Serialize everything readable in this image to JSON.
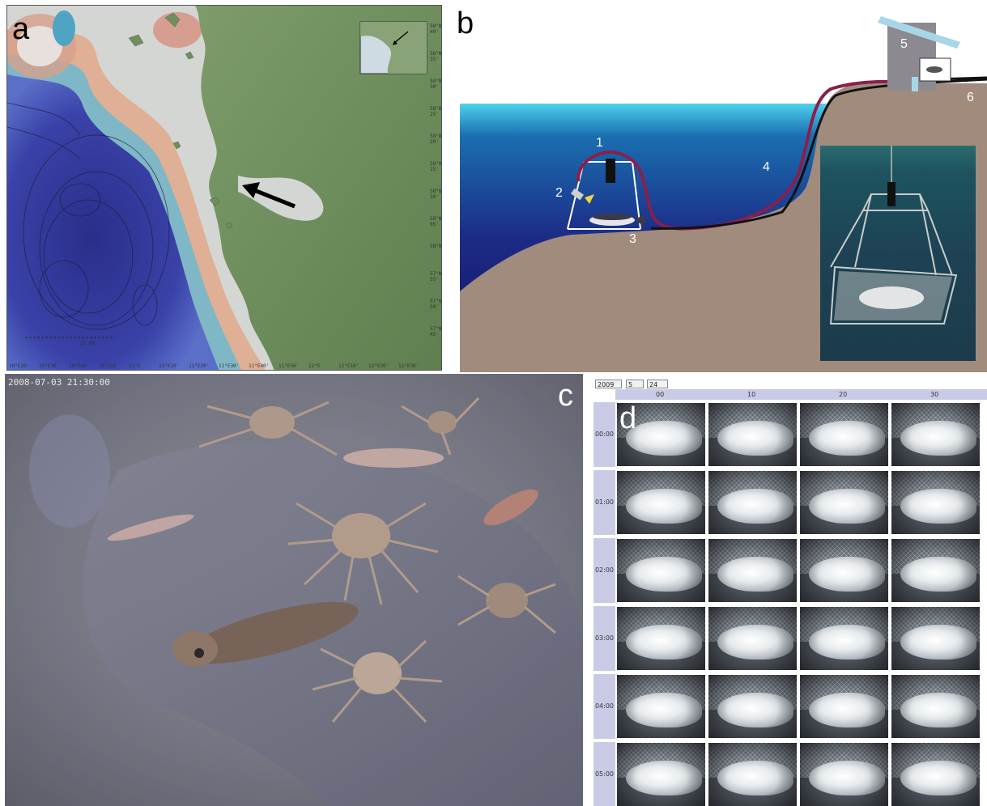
{
  "panel_a": {
    "letter": "a",
    "scale_label": "20 NM",
    "right_coords": [
      "58°N 40'",
      "58°N 35'",
      "58°N 30'",
      "58°N 25'",
      "58°N 20'",
      "58°N 15'",
      "58°N 10'",
      "58°N 05'",
      "58°N",
      "57°N 55'",
      "57°N 50'",
      "57°N 45'"
    ],
    "bottom_coords": [
      "10°E20'",
      "10°E30'",
      "10°E40'",
      "10°E50'",
      "11°E",
      "11°E10'",
      "11°E20'",
      "11°E30'",
      "11°E40'",
      "11°E50'",
      "12°E",
      "12°E10'",
      "12°E20'",
      "12°E30'"
    ]
  },
  "panel_b": {
    "letter": "b",
    "labels": [
      "1",
      "2",
      "3",
      "4",
      "5",
      "6"
    ]
  },
  "panel_c": {
    "letter": "c",
    "timestamp": "2008-07-03 21:30:00"
  },
  "panel_d": {
    "letter": "d",
    "selectors": {
      "year": "2009",
      "month": "5",
      "day": "24"
    },
    "column_headers": [
      "00",
      "10",
      "20",
      "30"
    ],
    "row_headers": [
      "00:00",
      "01:00",
      "02:00",
      "03:00",
      "04:00",
      "05:00"
    ]
  },
  "colors": {
    "water_top": "#4fc3e6",
    "water_deep": "#15186a",
    "seabed": "#a08b7d",
    "cable_red": "#8a1f4a",
    "land_green": "#6f8f5e",
    "deep_blue": "#3a3fa0"
  }
}
